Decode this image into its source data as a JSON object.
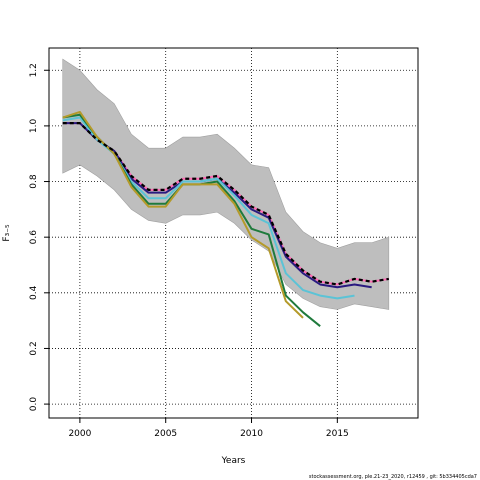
{
  "chart_data": {
    "type": "line",
    "xlabel": "Years",
    "ylabel": "F₃₋₅",
    "xlim": [
      1998.2,
      2019.7
    ],
    "ylim": [
      -0.05,
      1.28
    ],
    "xticks": [
      2000,
      2005,
      2010,
      2015
    ],
    "yticks": [
      0.0,
      0.2,
      0.4,
      0.6,
      0.8,
      1.0,
      1.2
    ],
    "grid": "dotted",
    "band": {
      "x": [
        1999,
        2000,
        2001,
        2002,
        2003,
        2004,
        2005,
        2006,
        2007,
        2008,
        2009,
        2010,
        2011,
        2012,
        2013,
        2014,
        2015,
        2016,
        2017,
        2018
      ],
      "lower": [
        0.83,
        0.86,
        0.82,
        0.77,
        0.7,
        0.66,
        0.65,
        0.68,
        0.68,
        0.69,
        0.65,
        0.59,
        0.55,
        0.43,
        0.38,
        0.35,
        0.34,
        0.36,
        0.35,
        0.34
      ],
      "upper": [
        1.24,
        1.2,
        1.13,
        1.08,
        0.97,
        0.92,
        0.92,
        0.96,
        0.96,
        0.97,
        0.92,
        0.86,
        0.85,
        0.69,
        0.62,
        0.58,
        0.56,
        0.58,
        0.58,
        0.6
      ]
    },
    "series": [
      {
        "color": "#ff69b4",
        "dash": "solid",
        "x": [
          1999,
          2000,
          2001,
          2002,
          2003,
          2004,
          2005,
          2006,
          2007,
          2008,
          2009,
          2010,
          2011,
          2012,
          2013,
          2014,
          2015,
          2016,
          2017,
          2018
        ],
        "y": [
          1.01,
          1.01,
          0.95,
          0.91,
          0.82,
          0.77,
          0.77,
          0.81,
          0.81,
          0.82,
          0.77,
          0.71,
          0.68,
          0.54,
          0.48,
          0.44,
          0.43,
          0.45,
          0.44,
          0.45
        ]
      },
      {
        "color": "#2a1a80",
        "dash": "solid",
        "x": [
          1999,
          2000,
          2001,
          2002,
          2003,
          2004,
          2005,
          2006,
          2007,
          2008,
          2009,
          2010,
          2011,
          2012,
          2013,
          2014,
          2015,
          2016,
          2017
        ],
        "y": [
          1.01,
          1.01,
          0.95,
          0.91,
          0.81,
          0.76,
          0.76,
          0.8,
          0.8,
          0.81,
          0.76,
          0.7,
          0.67,
          0.53,
          0.47,
          0.43,
          0.42,
          0.43,
          0.42
        ]
      },
      {
        "color": "#5bc3d6",
        "dash": "solid",
        "x": [
          1999,
          2000,
          2001,
          2002,
          2003,
          2004,
          2005,
          2006,
          2007,
          2008,
          2009,
          2010,
          2011,
          2012,
          2013,
          2014,
          2015,
          2016
        ],
        "y": [
          1.02,
          1.03,
          0.95,
          0.9,
          0.8,
          0.74,
          0.74,
          0.8,
          0.8,
          0.81,
          0.75,
          0.68,
          0.65,
          0.47,
          0.41,
          0.39,
          0.38,
          0.39
        ]
      },
      {
        "color": "#1f7a3c",
        "dash": "solid",
        "x": [
          1999,
          2000,
          2001,
          2002,
          2003,
          2004,
          2005,
          2006,
          2007,
          2008,
          2009,
          2010,
          2011,
          2012,
          2013,
          2014
        ],
        "y": [
          1.03,
          1.04,
          0.96,
          0.9,
          0.79,
          0.72,
          0.72,
          0.79,
          0.79,
          0.8,
          0.73,
          0.63,
          0.61,
          0.39,
          0.33,
          0.28
        ]
      },
      {
        "color": "#b49a2a",
        "dash": "solid",
        "x": [
          1999,
          2000,
          2001,
          2002,
          2003,
          2004,
          2005,
          2006,
          2007,
          2008,
          2009,
          2010,
          2011,
          2012,
          2013
        ],
        "y": [
          1.03,
          1.05,
          0.96,
          0.9,
          0.78,
          0.71,
          0.71,
          0.79,
          0.79,
          0.79,
          0.72,
          0.6,
          0.56,
          0.37,
          0.31
        ]
      },
      {
        "color": "#000000",
        "dash": "dashed",
        "x": [
          1999,
          2000,
          2001,
          2002,
          2003,
          2004,
          2005,
          2006,
          2007,
          2008,
          2009,
          2010,
          2011,
          2012,
          2013,
          2014,
          2015,
          2016,
          2017,
          2018
        ],
        "y": [
          1.01,
          1.01,
          0.95,
          0.91,
          0.82,
          0.77,
          0.77,
          0.81,
          0.81,
          0.82,
          0.77,
          0.71,
          0.68,
          0.54,
          0.48,
          0.44,
          0.43,
          0.45,
          0.44,
          0.45
        ]
      }
    ],
    "colors": {
      "band": "#bebebe",
      "grid": "#000000"
    }
  },
  "footer": "stockassessment.org, ple.21-23_2020, r12459 , git: 5b334405cda7"
}
